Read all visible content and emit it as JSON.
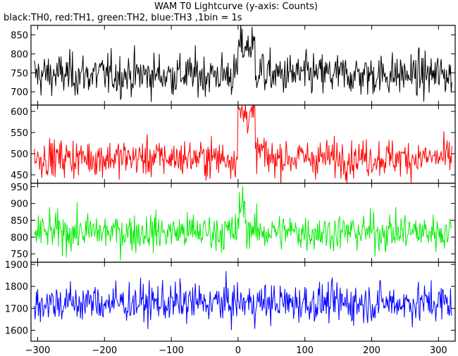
{
  "title": "WAM T0 Lightcurve (y-axis: Counts)",
  "subtitle": "black:TH0, red:TH1, green:TH2, blue:TH3 ,1bin = 1s",
  "chart_data": {
    "type": "line",
    "title": "WAM T0 Lightcurve (y-axis: Counts)",
    "subtitle": "black:TH0, red:TH1, green:TH2, blue:TH3 ,1bin = 1s",
    "xlim": [
      -310,
      325
    ],
    "xticks": [
      -300,
      -200,
      -100,
      0,
      100,
      200,
      300
    ],
    "xtick_labels": [
      "−300",
      "−200",
      "−100",
      "0",
      "100",
      "200",
      "300"
    ],
    "bin_seconds": 1,
    "panels": [
      {
        "color": "#000000",
        "ylim": [
          665,
          875
        ],
        "yticks": [
          700,
          750,
          800,
          850
        ],
        "baseline": 745,
        "noise": 28,
        "peak": 820,
        "peak_range": [
          0,
          25
        ]
      },
      {
        "color": "#ff0000",
        "ylim": [
          430,
          615
        ],
        "yticks": [
          450,
          500,
          550,
          600
        ],
        "baseline": 490,
        "noise": 22,
        "peak": 595,
        "peak_range": [
          0,
          25
        ]
      },
      {
        "color": "#00ee00",
        "ylim": [
          725,
          960
        ],
        "yticks": [
          750,
          800,
          850,
          900,
          950
        ],
        "baseline": 815,
        "noise": 28,
        "peak": 900,
        "peak_range": [
          2,
          10
        ]
      },
      {
        "color": "#0000ff",
        "ylim": [
          1550,
          1910
        ],
        "yticks": [
          1600,
          1700,
          1800,
          1900
        ],
        "baseline": 1725,
        "noise": 45,
        "peak": 1725,
        "peak_range": [
          0,
          0
        ]
      }
    ]
  }
}
